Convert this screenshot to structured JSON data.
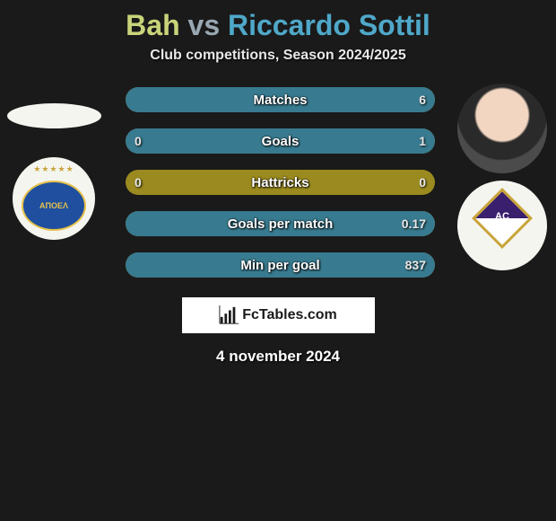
{
  "title": {
    "player1": "Bah",
    "vs": "vs",
    "player2": "Riccardo Sottil"
  },
  "subtitle": "Club competitions, Season 2024/2025",
  "colors": {
    "player1": "#c9d47a",
    "player2": "#4fa8c9",
    "bar_bg": "#9a8a1f",
    "bar_fill_p2": "#387a8f",
    "page_bg": "#1a1a1a"
  },
  "stats": [
    {
      "label": "Matches",
      "p1": "",
      "p2": "6",
      "p2_width_pct": 100
    },
    {
      "label": "Goals",
      "p1": "0",
      "p2": "1",
      "p2_width_pct": 100
    },
    {
      "label": "Hattricks",
      "p1": "0",
      "p2": "0",
      "p2_width_pct": 0
    },
    {
      "label": "Goals per match",
      "p1": "",
      "p2": "0.17",
      "p2_width_pct": 100
    },
    {
      "label": "Min per goal",
      "p1": "",
      "p2": "837",
      "p2_width_pct": 100
    }
  ],
  "branding": "FcTables.com",
  "date": "4 november 2024",
  "player1_club": "ΑΠΟΕΛ",
  "player2_club": "AC"
}
